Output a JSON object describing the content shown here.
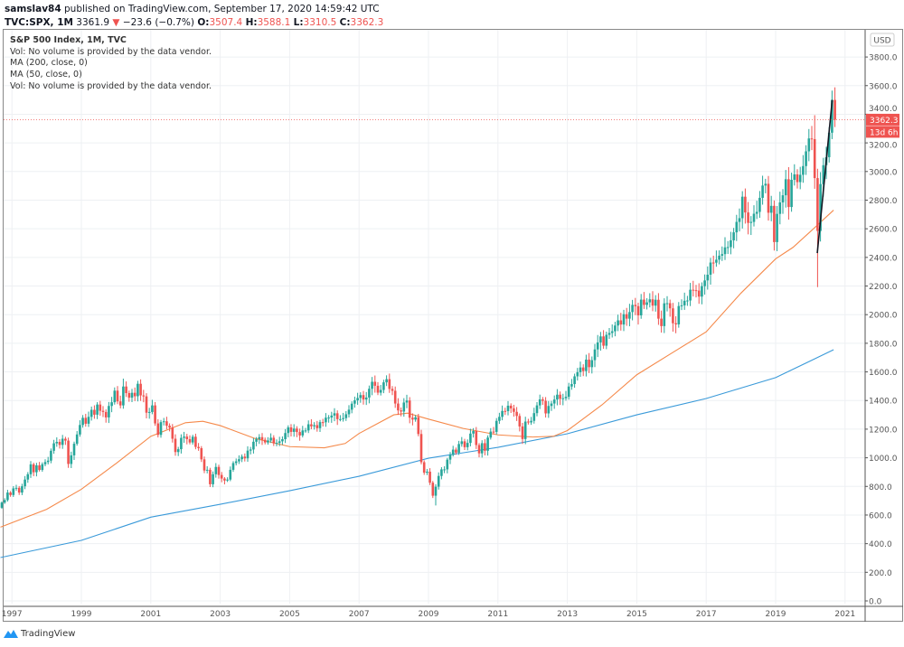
{
  "header": {
    "author": "samslav84",
    "published": "published on TradingView.com, September 17, 2020 14:59:42 UTC",
    "symbol": "TVC:SPX, 1M",
    "last": "3361.9",
    "change": "−23.6 (−0.7%)",
    "open_label": "O:",
    "open": "3507.4",
    "high_label": "H:",
    "high": "3588.1",
    "low_label": "L:",
    "low": "3310.5",
    "close_label": "C:",
    "close": "3362.3"
  },
  "legend": [
    "S&P 500 Index, 1M, TVC",
    "Vol: No volume is provided by the data vendor.",
    "MA (200, close, 0)",
    "MA (50, close, 0)",
    "Vol: No volume is provided by the data vendor."
  ],
  "footer": {
    "brand": "TradingView"
  },
  "colors": {
    "up": "#26a69a",
    "down": "#ef5350",
    "ma50": "#f5894a",
    "ma200": "#3a9ad9",
    "trendline": "#131722",
    "grid": "#eef0f3"
  },
  "chart_data": {
    "type": "candlestick",
    "title": "S&P 500 Index, 1M, TVC",
    "currency": "USD",
    "ylim": [
      0,
      3900
    ],
    "yticks": [
      0,
      200,
      400,
      600,
      800,
      1000,
      1200,
      1400,
      1600,
      1800,
      2000,
      2200,
      2400,
      2600,
      2800,
      3000,
      3200,
      3400,
      3600,
      3800
    ],
    "xticks": [
      "1997",
      "1999",
      "2001",
      "2003",
      "2005",
      "2007",
      "2009",
      "2011",
      "2013",
      "2015",
      "2017",
      "2019",
      "2021"
    ],
    "grid": true,
    "start_month": "1996-09",
    "first_open": 651,
    "monthly_closes": [
      687,
      705,
      757,
      740,
      786,
      790,
      757,
      801,
      848,
      885,
      954,
      899,
      947,
      915,
      955,
      970,
      980,
      1049,
      1101,
      1111,
      1090,
      1133,
      1120,
      957,
      1017,
      1098,
      1163,
      1229,
      1279,
      1238,
      1286,
      1335,
      1301,
      1372,
      1328,
      1320,
      1282,
      1362,
      1388,
      1469,
      1394,
      1366,
      1498,
      1452,
      1420,
      1454,
      1430,
      1517,
      1436,
      1429,
      1315,
      1320,
      1366,
      1240,
      1160,
      1249,
      1255,
      1224,
      1211,
      1133,
      1040,
      1060,
      1139,
      1148,
      1130,
      1107,
      1147,
      1076,
      1067,
      989,
      911,
      916,
      815,
      885,
      936,
      880,
      855,
      841,
      848,
      916,
      963,
      975,
      990,
      1008,
      996,
      1050,
      1058,
      1112,
      1131,
      1144,
      1126,
      1107,
      1121,
      1140,
      1101,
      1104,
      1115,
      1130,
      1173,
      1212,
      1181,
      1204,
      1180,
      1156,
      1191,
      1191,
      1234,
      1220,
      1228,
      1207,
      1249,
      1248,
      1280,
      1281,
      1295,
      1311,
      1270,
      1270,
      1277,
      1304,
      1336,
      1378,
      1401,
      1418,
      1438,
      1407,
      1421,
      1482,
      1531,
      1503,
      1455,
      1474,
      1527,
      1549,
      1481,
      1468,
      1379,
      1331,
      1323,
      1386,
      1400,
      1280,
      1267,
      1283,
      1166,
      969,
      896,
      903,
      826,
      735,
      798,
      873,
      919,
      919,
      987,
      1021,
      1057,
      1036,
      1096,
      1115,
      1074,
      1104,
      1169,
      1187,
      1089,
      1031,
      1102,
      1049,
      1141,
      1183,
      1181,
      1258,
      1286,
      1327,
      1326,
      1364,
      1345,
      1321,
      1292,
      1219,
      1131,
      1253,
      1247,
      1258,
      1312,
      1366,
      1408,
      1398,
      1310,
      1362,
      1379,
      1407,
      1441,
      1412,
      1416,
      1426,
      1498,
      1515,
      1569,
      1598,
      1631,
      1606,
      1686,
      1633,
      1682,
      1757,
      1806,
      1848,
      1783,
      1859,
      1872,
      1884,
      1924,
      1960,
      1931,
      2003,
      1972,
      2018,
      2068,
      2059,
      1995,
      2105,
      2068,
      2086,
      2107,
      2063,
      2104,
      1972,
      1920,
      2079,
      2080,
      2044,
      1940,
      1932,
      2060,
      2065,
      2097,
      2099,
      2174,
      2171,
      2168,
      2126,
      2199,
      2239,
      2279,
      2364,
      2363,
      2384,
      2412,
      2423,
      2470,
      2472,
      2519,
      2575,
      2648,
      2674,
      2824,
      2714,
      2641,
      2648,
      2705,
      2718,
      2816,
      2902,
      2914,
      2712,
      2760,
      2507,
      2704,
      2784,
      2834,
      2946,
      2752,
      2942,
      2980,
      2926,
      2977,
      3038,
      3141,
      3231,
      3226,
      2954,
      2585,
      2912,
      3044,
      3100,
      3271,
      3500,
      3362.3
    ],
    "known_extremes": [
      {
        "month": "2000-03",
        "high": 1552.9
      },
      {
        "month": "2007-10",
        "high": 1576.1
      },
      {
        "month": "2009-03",
        "low": 666.8
      },
      {
        "month": "2020-02",
        "high": 3393.5
      },
      {
        "month": "2020-03",
        "low": 2191.9
      },
      {
        "month": "2020-09",
        "high": 3588.1,
        "low": 3310.5
      }
    ],
    "ma50": [
      [
        1996.67,
        515
      ],
      [
        1998,
        640
      ],
      [
        1999,
        780
      ],
      [
        2000,
        960
      ],
      [
        2001,
        1150
      ],
      [
        2002,
        1245
      ],
      [
        2002.5,
        1255
      ],
      [
        2003,
        1225
      ],
      [
        2004,
        1135
      ],
      [
        2005,
        1078
      ],
      [
        2006,
        1070
      ],
      [
        2006.6,
        1100
      ],
      [
        2007,
        1170
      ],
      [
        2008,
        1300
      ],
      [
        2008.4,
        1312
      ],
      [
        2009,
        1270
      ],
      [
        2010,
        1205
      ],
      [
        2011,
        1160
      ],
      [
        2012,
        1145
      ],
      [
        2012.6,
        1150
      ],
      [
        2013,
        1190
      ],
      [
        2014,
        1370
      ],
      [
        2015,
        1580
      ],
      [
        2016,
        1730
      ],
      [
        2017,
        1880
      ],
      [
        2018,
        2150
      ],
      [
        2019,
        2390
      ],
      [
        2019.5,
        2470
      ],
      [
        2020,
        2580
      ],
      [
        2020.67,
        2730
      ]
    ],
    "ma200": [
      [
        1996.67,
        303
      ],
      [
        1999,
        423
      ],
      [
        2001,
        585
      ],
      [
        2003,
        675
      ],
      [
        2005,
        770
      ],
      [
        2007,
        871
      ],
      [
        2009,
        997
      ],
      [
        2011,
        1073
      ],
      [
        2013,
        1168
      ],
      [
        2015,
        1300
      ],
      [
        2017,
        1414
      ],
      [
        2019,
        1560
      ],
      [
        2020.67,
        1755
      ]
    ],
    "trendline": [
      [
        2020.2,
        2430
      ],
      [
        2020.63,
        3500
      ]
    ],
    "last_price_label": "3362.3",
    "countdown_label": "13d 6h"
  }
}
